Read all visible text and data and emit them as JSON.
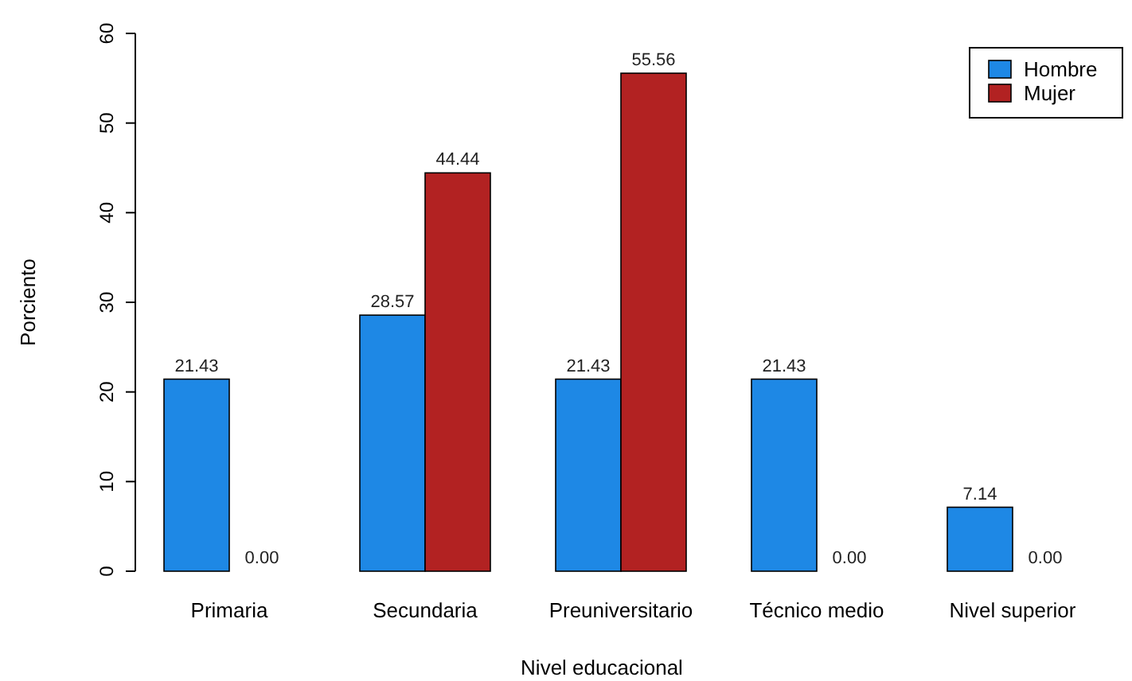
{
  "chart_data": {
    "type": "bar",
    "xlabel": "Nivel educacional",
    "ylabel": "Porciento",
    "categories": [
      "Primaria",
      "Secundaria",
      "Preuniversitario",
      "Técnico medio",
      "Nivel superior"
    ],
    "series": [
      {
        "name": "Hombre",
        "color": "#1e88e5",
        "values": [
          21.43,
          28.57,
          21.43,
          21.43,
          7.14
        ]
      },
      {
        "name": "Mujer",
        "color": "#b22222",
        "values": [
          0.0,
          44.44,
          55.56,
          0.0,
          0.0
        ]
      }
    ],
    "value_labels": [
      [
        "21.43",
        "28.57",
        "21.43",
        "21.43",
        "7.14"
      ],
      [
        "0.00",
        "44.44",
        "55.56",
        "0.00",
        "0.00"
      ]
    ],
    "ylim": [
      0,
      60
    ],
    "yticks": [
      0,
      10,
      20,
      30,
      40,
      50,
      60
    ],
    "legend": "top right"
  }
}
